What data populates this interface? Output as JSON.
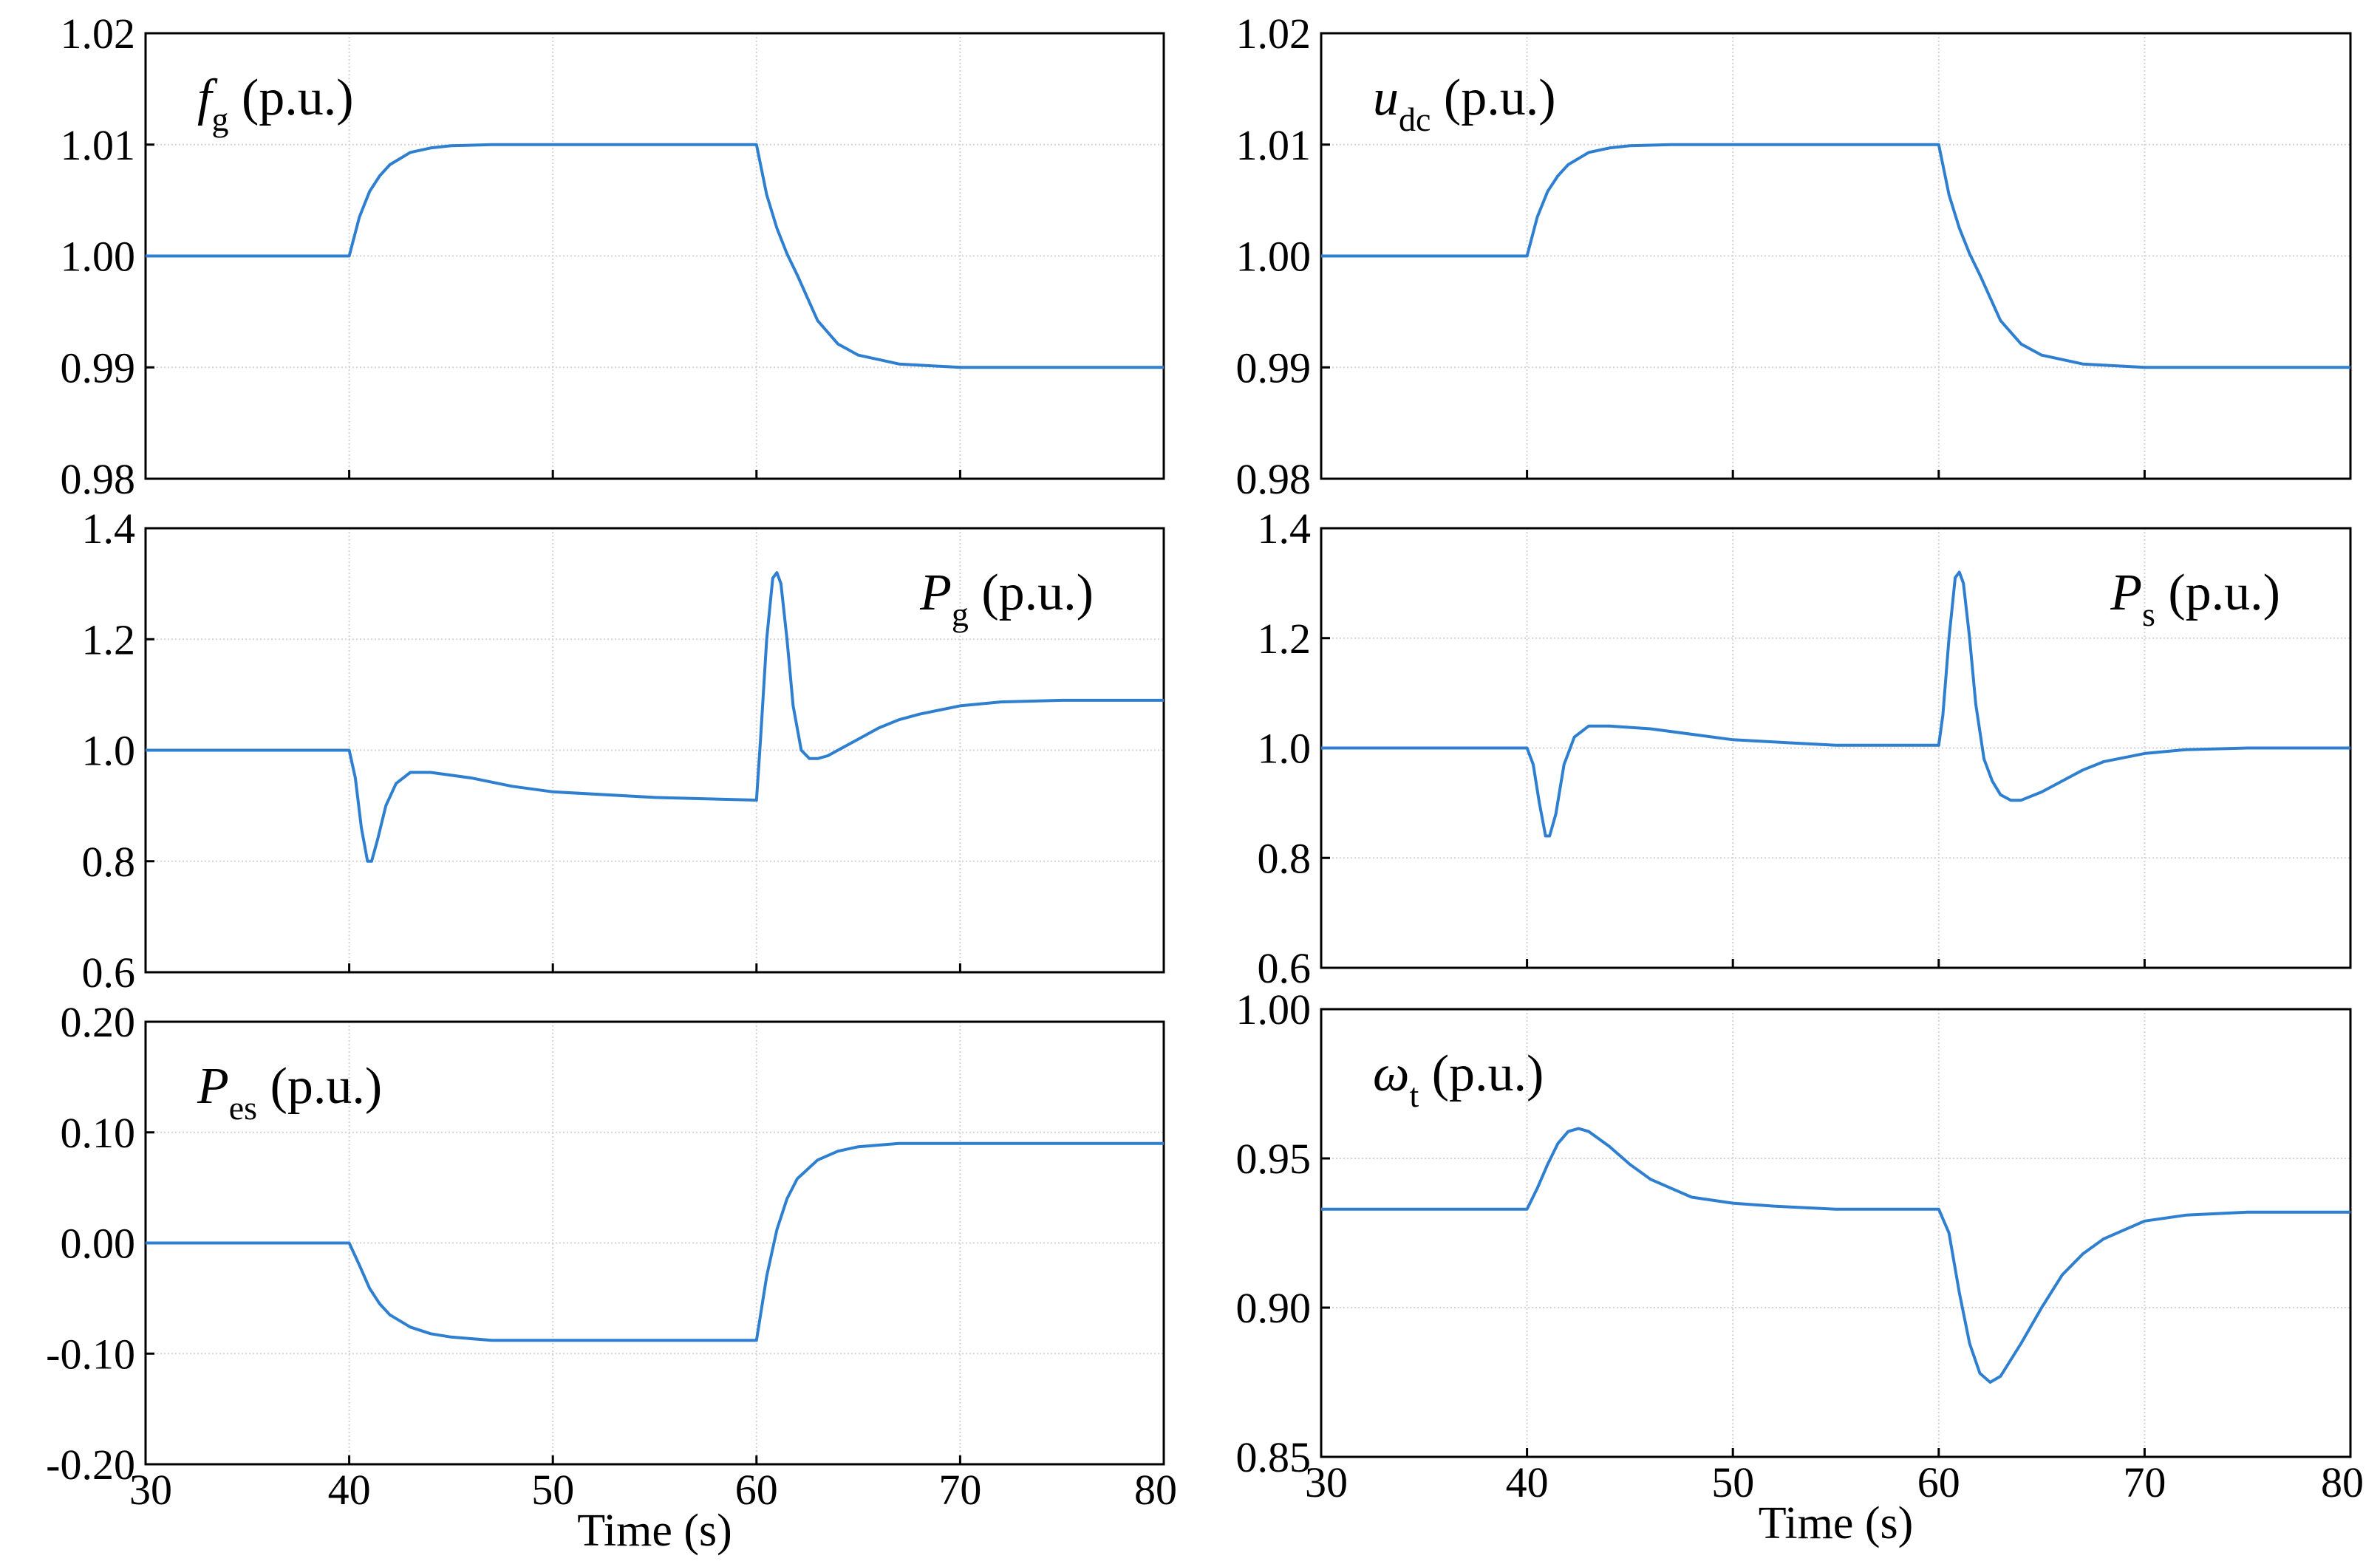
{
  "chart_data": [
    {
      "id": "fg",
      "type": "line",
      "title": {
        "sym": "f",
        "sub": "g",
        "unit": "(p.u.)"
      },
      "title_position": "top-left",
      "xlabel": "",
      "ylabel": "",
      "xlim": [
        30,
        80
      ],
      "ylim": [
        0.98,
        1.02
      ],
      "xticks": [
        "30",
        "40",
        "50",
        "60",
        "70",
        "80"
      ],
      "xtick_values": [
        30,
        40,
        50,
        60,
        70,
        80
      ],
      "yticks": [
        "0.98",
        "0.99",
        "1.00",
        "1.01",
        "1.02"
      ],
      "ytick_values": [
        0.98,
        0.99,
        1.0,
        1.01,
        1.02
      ],
      "show_xticks": false,
      "grid": true,
      "series": [
        {
          "name": "fg",
          "color": "#2f7fd0",
          "x": [
            30,
            40,
            40.5,
            41,
            41.5,
            42,
            43,
            44,
            45,
            47,
            50,
            55,
            60,
            60.5,
            61,
            61.5,
            62,
            63,
            64,
            65,
            67,
            70,
            75,
            80
          ],
          "y": [
            1.0,
            1.0,
            1.0035,
            1.0058,
            1.0072,
            1.0082,
            1.0093,
            1.0097,
            1.0099,
            1.01,
            1.01,
            1.01,
            1.01,
            1.0055,
            1.0025,
            1.0002,
            0.9983,
            0.9942,
            0.9921,
            0.9911,
            0.9903,
            0.99,
            0.99,
            0.99
          ]
        }
      ]
    },
    {
      "id": "udc",
      "type": "line",
      "title": {
        "sym": "u",
        "sub": "dc",
        "unit": "(p.u.)"
      },
      "title_position": "top-left",
      "xlabel": "",
      "ylabel": "",
      "xlim": [
        30,
        80
      ],
      "ylim": [
        0.98,
        1.02
      ],
      "xticks": [
        "30",
        "40",
        "50",
        "60",
        "70",
        "80"
      ],
      "xtick_values": [
        30,
        40,
        50,
        60,
        70,
        80
      ],
      "yticks": [
        "0.98",
        "0.99",
        "1.00",
        "1.01",
        "1.02"
      ],
      "ytick_values": [
        0.98,
        0.99,
        1.0,
        1.01,
        1.02
      ],
      "show_xticks": false,
      "grid": true,
      "series": [
        {
          "name": "udc",
          "color": "#2f7fd0",
          "x": [
            30,
            40,
            40.5,
            41,
            41.5,
            42,
            43,
            44,
            45,
            47,
            50,
            55,
            60,
            60.5,
            61,
            61.5,
            62,
            63,
            64,
            65,
            67,
            70,
            75,
            80
          ],
          "y": [
            1.0,
            1.0,
            1.0035,
            1.0058,
            1.0072,
            1.0082,
            1.0093,
            1.0097,
            1.0099,
            1.01,
            1.01,
            1.01,
            1.01,
            1.0055,
            1.0025,
            1.0002,
            0.9983,
            0.9942,
            0.9921,
            0.9911,
            0.9903,
            0.99,
            0.99,
            0.99
          ]
        }
      ]
    },
    {
      "id": "pg",
      "type": "line",
      "title": {
        "sym": "P",
        "sub": "g",
        "unit": "(p.u.)"
      },
      "title_position": "top-right",
      "xlabel": "",
      "ylabel": "",
      "xlim": [
        30,
        80
      ],
      "ylim": [
        0.6,
        1.4
      ],
      "xticks": [
        "30",
        "40",
        "50",
        "60",
        "70",
        "80"
      ],
      "xtick_values": [
        30,
        40,
        50,
        60,
        70,
        80
      ],
      "yticks": [
        "0.6",
        "0.8",
        "1.0",
        "1.2",
        "1.4"
      ],
      "ytick_values": [
        0.6,
        0.8,
        1.0,
        1.2,
        1.4
      ],
      "show_xticks": false,
      "grid": true,
      "series": [
        {
          "name": "Pg",
          "color": "#2f7fd0",
          "x": [
            30,
            40,
            40.3,
            40.6,
            40.9,
            41.1,
            41.4,
            41.8,
            42.3,
            43,
            44,
            46,
            48,
            50,
            55,
            60,
            60.2,
            60.5,
            60.8,
            61,
            61.2,
            61.5,
            61.8,
            62.2,
            62.6,
            63,
            63.5,
            64,
            65,
            66,
            67,
            68,
            70,
            72,
            75,
            80
          ],
          "y": [
            1.0,
            1.0,
            0.95,
            0.86,
            0.8,
            0.8,
            0.84,
            0.9,
            0.94,
            0.96,
            0.96,
            0.95,
            0.935,
            0.925,
            0.915,
            0.91,
            1.02,
            1.2,
            1.31,
            1.32,
            1.3,
            1.2,
            1.08,
            1.0,
            0.985,
            0.985,
            0.99,
            1.0,
            1.02,
            1.04,
            1.055,
            1.065,
            1.08,
            1.087,
            1.09,
            1.09
          ]
        }
      ]
    },
    {
      "id": "ps",
      "type": "line",
      "title": {
        "sym": "P",
        "sub": "s",
        "unit": "(p.u.)"
      },
      "title_position": "top-right",
      "xlabel": "",
      "ylabel": "",
      "xlim": [
        30,
        80
      ],
      "ylim": [
        0.6,
        1.4
      ],
      "xticks": [
        "30",
        "40",
        "50",
        "60",
        "70",
        "80"
      ],
      "xtick_values": [
        30,
        40,
        50,
        60,
        70,
        80
      ],
      "yticks": [
        "0.6",
        "0.8",
        "1.0",
        "1.2",
        "1.4"
      ],
      "ytick_values": [
        0.6,
        0.8,
        1.0,
        1.2,
        1.4
      ],
      "show_xticks": false,
      "grid": true,
      "series": [
        {
          "name": "Ps",
          "color": "#2f7fd0",
          "x": [
            30,
            40,
            40.3,
            40.6,
            40.9,
            41.1,
            41.4,
            41.8,
            42.3,
            43,
            44,
            46,
            48,
            50,
            55,
            60,
            60.2,
            60.5,
            60.8,
            61,
            61.2,
            61.5,
            61.8,
            62.2,
            62.6,
            63,
            63.5,
            64,
            65,
            66,
            67,
            68,
            70,
            72,
            75,
            80
          ],
          "y": [
            1.0,
            1.0,
            0.97,
            0.9,
            0.84,
            0.84,
            0.88,
            0.97,
            1.02,
            1.04,
            1.04,
            1.035,
            1.025,
            1.015,
            1.005,
            1.005,
            1.06,
            1.2,
            1.31,
            1.32,
            1.3,
            1.2,
            1.08,
            0.98,
            0.94,
            0.915,
            0.905,
            0.905,
            0.92,
            0.94,
            0.96,
            0.975,
            0.99,
            0.997,
            1.0,
            1.0
          ]
        }
      ]
    },
    {
      "id": "pes",
      "type": "line",
      "title": {
        "sym": "P",
        "sub": "es",
        "unit": "(p.u.)"
      },
      "title_position": "top-left",
      "xlabel": "Time (s)",
      "ylabel": "",
      "xlim": [
        30,
        80
      ],
      "ylim": [
        -0.2,
        0.2
      ],
      "xticks": [
        "30",
        "40",
        "50",
        "60",
        "70",
        "80"
      ],
      "xtick_values": [
        30,
        40,
        50,
        60,
        70,
        80
      ],
      "yticks": [
        "-0.20",
        "-0.10",
        "0.00",
        "0.10",
        "0.20"
      ],
      "ytick_values": [
        -0.2,
        -0.1,
        0.0,
        0.1,
        0.2
      ],
      "show_xticks": true,
      "grid": true,
      "series": [
        {
          "name": "Pes",
          "color": "#2f7fd0",
          "x": [
            30,
            40,
            40.5,
            41,
            41.5,
            42,
            43,
            44,
            45,
            47,
            50,
            55,
            60,
            60.5,
            61,
            61.5,
            62,
            63,
            64,
            65,
            67,
            70,
            75,
            80
          ],
          "y": [
            0.0,
            0.0,
            -0.02,
            -0.041,
            -0.055,
            -0.065,
            -0.076,
            -0.082,
            -0.085,
            -0.088,
            -0.088,
            -0.088,
            -0.088,
            -0.03,
            0.012,
            0.04,
            0.058,
            0.075,
            0.083,
            0.087,
            0.09,
            0.09,
            0.09,
            0.09
          ]
        }
      ]
    },
    {
      "id": "wt",
      "type": "line",
      "title": {
        "sym": "ω",
        "sub": "t",
        "unit": "(p.u.)"
      },
      "title_position": "top-left",
      "xlabel": "Time (s)",
      "ylabel": "",
      "xlim": [
        30,
        80
      ],
      "ylim": [
        0.85,
        1.0
      ],
      "xticks": [
        "30",
        "40",
        "50",
        "60",
        "70",
        "80"
      ],
      "xtick_values": [
        30,
        40,
        50,
        60,
        70,
        80
      ],
      "yticks": [
        "0.85",
        "0.90",
        "0.95",
        "1.00"
      ],
      "ytick_values": [
        0.85,
        0.9,
        0.95,
        1.0
      ],
      "show_xticks": true,
      "grid": true,
      "series": [
        {
          "name": "wt",
          "color": "#2f7fd0",
          "x": [
            30,
            40,
            40.5,
            41,
            41.5,
            42,
            42.5,
            43,
            44,
            45,
            46,
            48,
            50,
            52,
            55,
            60,
            60.5,
            61,
            61.5,
            62,
            62.5,
            63,
            64,
            65,
            66,
            67,
            68,
            70,
            72,
            75,
            80
          ],
          "y": [
            0.933,
            0.933,
            0.94,
            0.948,
            0.955,
            0.959,
            0.96,
            0.959,
            0.954,
            0.948,
            0.943,
            0.937,
            0.935,
            0.934,
            0.933,
            0.933,
            0.925,
            0.905,
            0.888,
            0.878,
            0.875,
            0.877,
            0.888,
            0.9,
            0.911,
            0.918,
            0.923,
            0.929,
            0.931,
            0.932,
            0.932
          ]
        }
      ]
    }
  ]
}
